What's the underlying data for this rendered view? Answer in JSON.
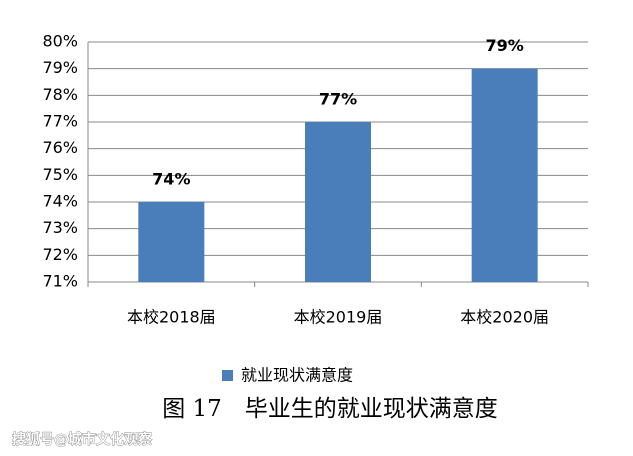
{
  "chart_data": {
    "type": "bar",
    "title": "图 17　毕业生的就业现状满意度",
    "watermark": "搜狐号@城市文化观察",
    "categories": [
      "本校2018届",
      "本校2019届",
      "本校2020届"
    ],
    "series": [
      {
        "name": "就业现状满意度",
        "color": "#4a7ebb",
        "values": [
          74,
          77,
          79
        ],
        "value_labels": [
          "74%",
          "77%",
          "79%"
        ]
      }
    ],
    "ylim": [
      71,
      80
    ],
    "yticks": [
      {
        "value": 71,
        "label": "71%"
      },
      {
        "value": 72,
        "label": "72%"
      },
      {
        "value": 73,
        "label": "73%"
      },
      {
        "value": 74,
        "label": "74%"
      },
      {
        "value": 75,
        "label": "75%"
      },
      {
        "value": 76,
        "label": "76%"
      },
      {
        "value": 77,
        "label": "77%"
      },
      {
        "value": 78,
        "label": "78%"
      },
      {
        "value": 79,
        "label": "79%"
      },
      {
        "value": 80,
        "label": "80%"
      }
    ],
    "grid": true,
    "legend": "bottom"
  }
}
